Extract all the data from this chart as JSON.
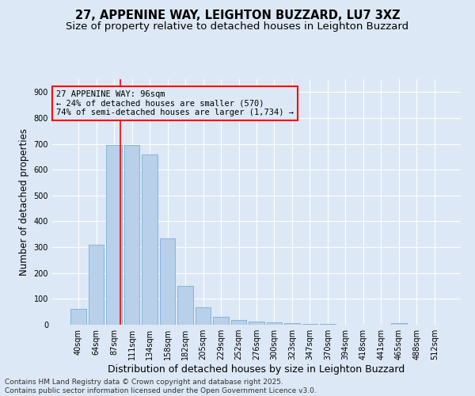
{
  "title_line1": "27, APPENINE WAY, LEIGHTON BUZZARD, LU7 3XZ",
  "title_line2": "Size of property relative to detached houses in Leighton Buzzard",
  "xlabel": "Distribution of detached houses by size in Leighton Buzzard",
  "ylabel": "Number of detached properties",
  "categories": [
    "40sqm",
    "64sqm",
    "87sqm",
    "111sqm",
    "134sqm",
    "158sqm",
    "182sqm",
    "205sqm",
    "229sqm",
    "252sqm",
    "276sqm",
    "300sqm",
    "323sqm",
    "347sqm",
    "370sqm",
    "394sqm",
    "418sqm",
    "441sqm",
    "465sqm",
    "488sqm",
    "512sqm"
  ],
  "values": [
    60,
    310,
    695,
    695,
    660,
    335,
    150,
    68,
    30,
    18,
    12,
    8,
    5,
    3,
    2,
    1,
    0,
    0,
    5,
    0,
    0
  ],
  "bar_color": "#b8d0ea",
  "bar_edge_color": "#7aafd4",
  "ylim": [
    0,
    950
  ],
  "yticks": [
    0,
    100,
    200,
    300,
    400,
    500,
    600,
    700,
    800,
    900
  ],
  "annotation_line1": "27 APPENINE WAY: 96sqm",
  "annotation_line2": "← 24% of detached houses are smaller (570)",
  "annotation_line3": "74% of semi-detached houses are larger (1,734) →",
  "footer": "Contains HM Land Registry data © Crown copyright and database right 2025.\nContains public sector information licensed under the Open Government Licence v3.0.",
  "bg_color": "#dce8f5",
  "grid_color": "#ffffff",
  "title_fontsize": 10.5,
  "subtitle_fontsize": 9.5,
  "ylabel_fontsize": 8.5,
  "xlabel_fontsize": 9,
  "tick_fontsize": 7,
  "annot_fontsize": 7.5,
  "footer_fontsize": 6.5,
  "red_line_index": 2.37
}
